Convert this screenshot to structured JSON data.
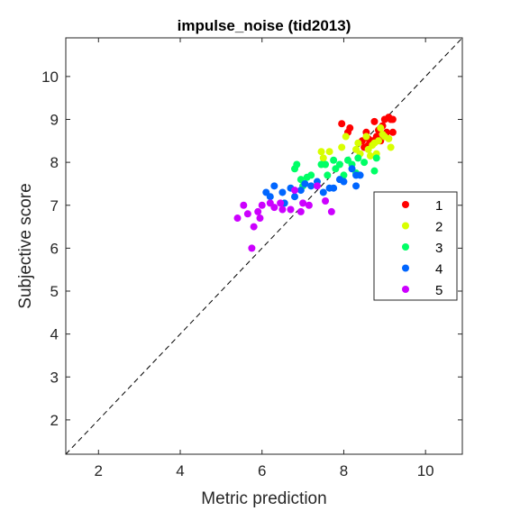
{
  "chart_data": {
    "type": "scatter",
    "title": "impulse_noise (tid2013)",
    "xlabel": "Metric prediction",
    "ylabel": "Subjective score",
    "xlim": [
      1.2,
      10.9
    ],
    "ylim": [
      1.2,
      10.9
    ],
    "xticks": [
      2,
      4,
      6,
      8,
      10
    ],
    "yticks": [
      2,
      3,
      4,
      5,
      6,
      7,
      8,
      9,
      10
    ],
    "grid": false,
    "legend_position": "right",
    "diagonal": "dashed y = x reference line",
    "series": [
      {
        "name": "1",
        "color": "#ff0000",
        "points": [
          [
            7.95,
            8.9
          ],
          [
            8.1,
            8.7
          ],
          [
            8.15,
            8.8
          ],
          [
            8.45,
            8.5
          ],
          [
            8.55,
            8.7
          ],
          [
            8.6,
            8.4
          ],
          [
            8.7,
            8.5
          ],
          [
            8.75,
            8.95
          ],
          [
            8.8,
            8.6
          ],
          [
            8.85,
            8.75
          ],
          [
            8.9,
            8.5
          ],
          [
            8.95,
            8.85
          ],
          [
            9.0,
            9.0
          ],
          [
            9.05,
            8.7
          ],
          [
            9.1,
            9.05
          ],
          [
            9.15,
            9.0
          ],
          [
            9.2,
            8.7
          ],
          [
            9.2,
            9.0
          ],
          [
            8.6,
            8.55
          ],
          [
            8.5,
            8.35
          ]
        ]
      },
      {
        "name": "2",
        "color": "#d8ff00",
        "points": [
          [
            7.45,
            8.25
          ],
          [
            7.5,
            8.1
          ],
          [
            7.65,
            8.25
          ],
          [
            7.95,
            8.35
          ],
          [
            8.05,
            8.6
          ],
          [
            8.3,
            8.3
          ],
          [
            8.35,
            8.45
          ],
          [
            8.4,
            8.2
          ],
          [
            8.6,
            8.3
          ],
          [
            8.65,
            8.15
          ],
          [
            8.7,
            8.4
          ],
          [
            8.75,
            8.45
          ],
          [
            8.8,
            8.2
          ],
          [
            8.85,
            8.5
          ],
          [
            8.9,
            8.8
          ],
          [
            9.0,
            8.6
          ],
          [
            9.1,
            8.55
          ],
          [
            9.15,
            8.35
          ],
          [
            8.95,
            8.65
          ],
          [
            8.55,
            8.6
          ]
        ]
      },
      {
        "name": "3",
        "color": "#00ff66",
        "points": [
          [
            6.8,
            7.85
          ],
          [
            6.85,
            7.95
          ],
          [
            6.95,
            7.6
          ],
          [
            7.0,
            7.45
          ],
          [
            7.1,
            7.65
          ],
          [
            7.2,
            7.7
          ],
          [
            7.45,
            7.95
          ],
          [
            7.55,
            7.95
          ],
          [
            7.6,
            7.7
          ],
          [
            7.75,
            8.05
          ],
          [
            7.8,
            7.85
          ],
          [
            7.9,
            7.95
          ],
          [
            8.0,
            7.7
          ],
          [
            8.1,
            8.05
          ],
          [
            8.2,
            7.95
          ],
          [
            8.3,
            7.75
          ],
          [
            8.35,
            8.1
          ],
          [
            8.5,
            8.0
          ],
          [
            8.75,
            7.8
          ],
          [
            8.8,
            8.1
          ]
        ]
      },
      {
        "name": "4",
        "color": "#0066ff",
        "points": [
          [
            6.1,
            7.3
          ],
          [
            6.2,
            7.2
          ],
          [
            6.3,
            7.45
          ],
          [
            6.5,
            7.3
          ],
          [
            6.55,
            7.05
          ],
          [
            6.7,
            7.4
          ],
          [
            6.8,
            7.2
          ],
          [
            6.95,
            7.35
          ],
          [
            7.05,
            7.5
          ],
          [
            7.2,
            7.45
          ],
          [
            7.35,
            7.55
          ],
          [
            7.5,
            7.3
          ],
          [
            7.65,
            7.4
          ],
          [
            7.75,
            7.4
          ],
          [
            7.9,
            7.6
          ],
          [
            8.0,
            7.55
          ],
          [
            8.2,
            7.85
          ],
          [
            8.3,
            7.7
          ],
          [
            8.4,
            7.7
          ],
          [
            8.3,
            7.45
          ]
        ]
      },
      {
        "name": "5",
        "color": "#cc00ff",
        "points": [
          [
            5.4,
            6.7
          ],
          [
            5.55,
            7.0
          ],
          [
            5.65,
            6.8
          ],
          [
            5.75,
            6.0
          ],
          [
            5.8,
            6.5
          ],
          [
            5.9,
            6.85
          ],
          [
            5.95,
            6.7
          ],
          [
            6.0,
            7.0
          ],
          [
            6.2,
            7.05
          ],
          [
            6.3,
            6.95
          ],
          [
            6.45,
            7.05
          ],
          [
            6.5,
            6.9
          ],
          [
            6.7,
            6.9
          ],
          [
            6.8,
            7.35
          ],
          [
            6.95,
            6.85
          ],
          [
            7.0,
            7.05
          ],
          [
            7.15,
            7.0
          ],
          [
            7.35,
            7.45
          ],
          [
            7.55,
            7.1
          ],
          [
            7.7,
            6.85
          ]
        ]
      }
    ]
  }
}
